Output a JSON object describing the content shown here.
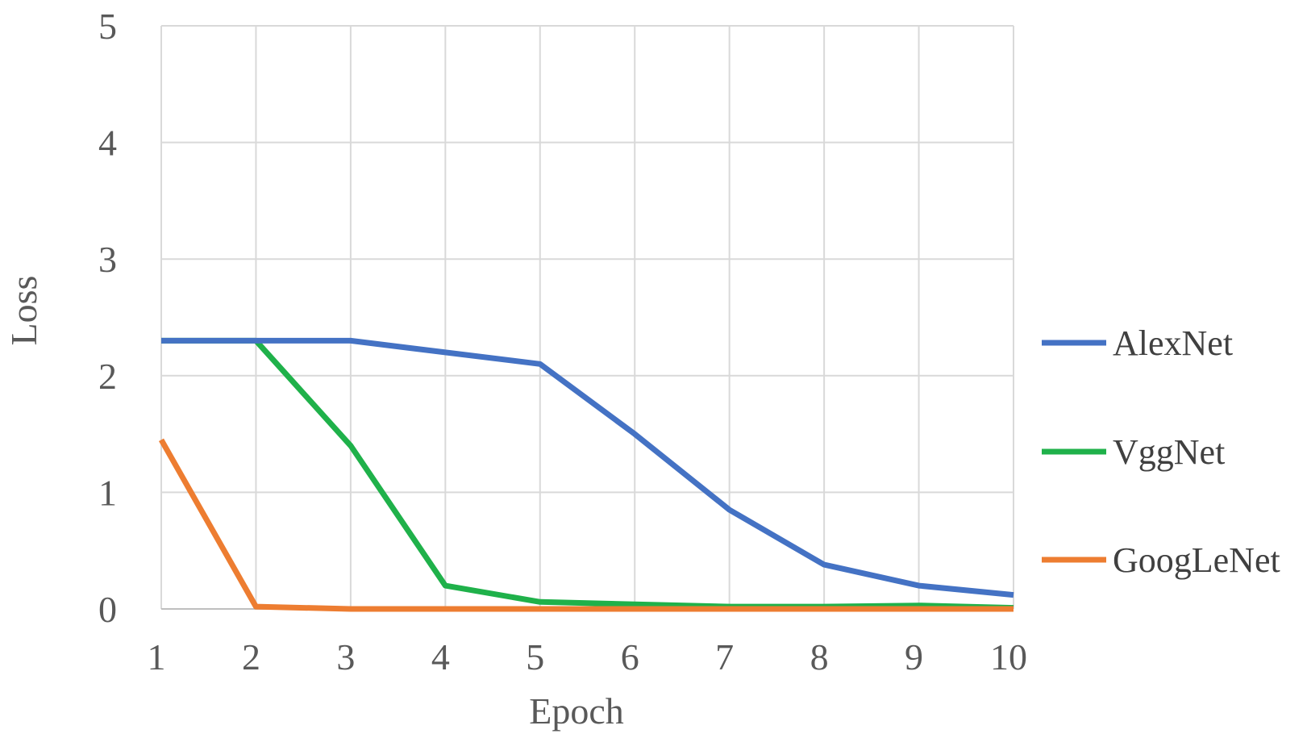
{
  "chart_data": {
    "type": "line",
    "xlabel": "Epoch",
    "ylabel": "Loss",
    "x": [
      1,
      2,
      3,
      4,
      5,
      6,
      7,
      8,
      9,
      10
    ],
    "xticks": [
      "1",
      "2",
      "3",
      "4",
      "5",
      "6",
      "7",
      "8",
      "9",
      "10"
    ],
    "yticks": [
      "0",
      "1",
      "2",
      "3",
      "4",
      "5"
    ],
    "ylim": [
      0,
      5
    ],
    "grid": true,
    "legend": "right",
    "series": [
      {
        "name": "AlexNet",
        "color": "#4472c4",
        "values": [
          2.3,
          2.3,
          2.3,
          2.2,
          2.1,
          1.5,
          0.85,
          0.38,
          0.2,
          0.12
        ]
      },
      {
        "name": "VggNet",
        "color": "#1fb14a",
        "values": [
          2.3,
          2.3,
          1.4,
          0.2,
          0.06,
          0.04,
          0.02,
          0.02,
          0.03,
          0.01
        ]
      },
      {
        "name": "GoogLeNet",
        "color": "#ed7d31",
        "values": [
          1.45,
          0.02,
          0.0,
          0.0,
          0.0,
          0.0,
          0.0,
          0.0,
          0.0,
          0.0
        ]
      }
    ]
  }
}
